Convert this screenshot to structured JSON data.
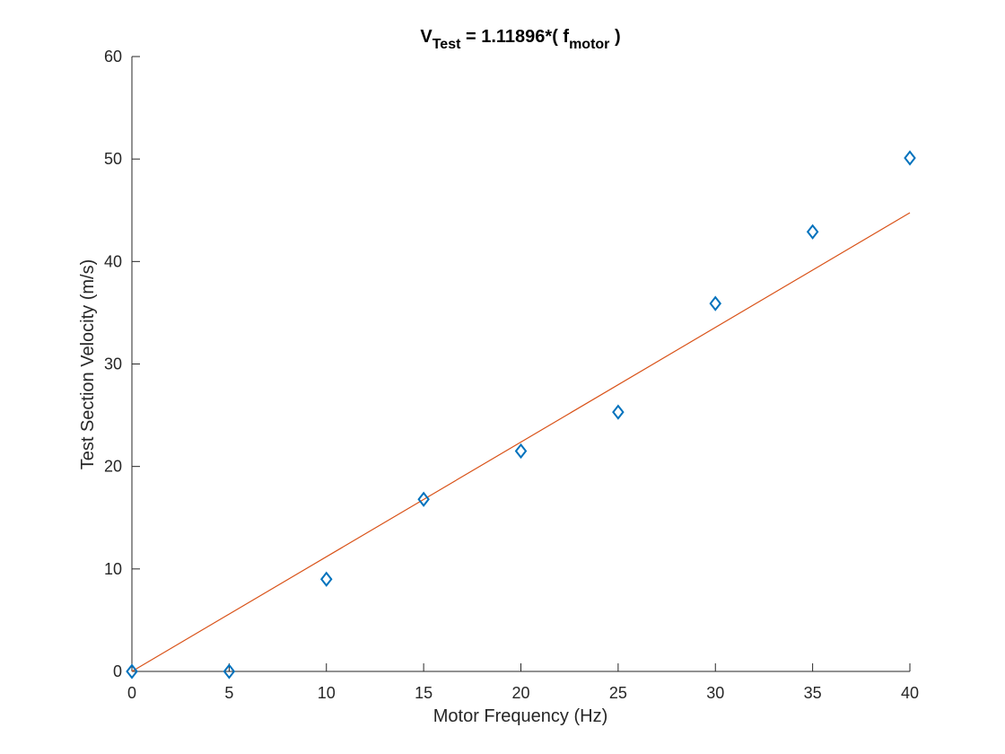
{
  "chart_data": {
    "type": "scatter",
    "title": {
      "v": "V",
      "v_sub": "Test",
      "middle": " = 1.11896*( f",
      "f_sub": "motor",
      "end": " )"
    },
    "xlabel": "Motor Frequency (Hz)",
    "ylabel": "Test Section Velocity (m/s)",
    "xlim": [
      0,
      40
    ],
    "ylim": [
      0,
      60
    ],
    "xticks": [
      0,
      5,
      10,
      15,
      20,
      25,
      30,
      35,
      40
    ],
    "yticks": [
      0,
      10,
      20,
      30,
      40,
      50,
      60
    ],
    "grid": false,
    "series": [
      {
        "marker": "diamond",
        "color": "#0072BD",
        "x": [
          0,
          5,
          10,
          15,
          20,
          25,
          30,
          35,
          40
        ],
        "y": [
          0,
          0,
          9.0,
          16.8,
          21.5,
          25.3,
          35.9,
          42.9,
          50.1
        ]
      }
    ],
    "fit_line": {
      "slope": 1.11896,
      "x": [
        0,
        40
      ],
      "color": "#D95319"
    }
  }
}
